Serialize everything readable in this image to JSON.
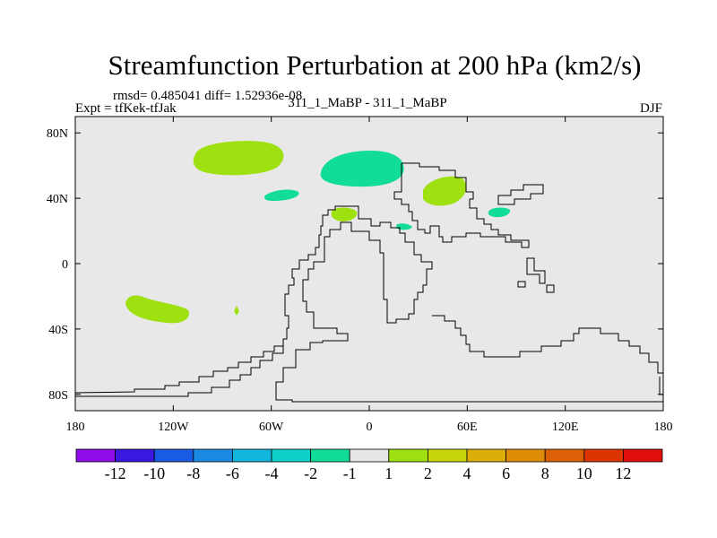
{
  "title": "Streamfunction Perturbation at 200 hPa (km2/s)",
  "stats_line": "rmsd= 0.485041 diff= 1.52936e-08",
  "left_label": "Expt = tfKek-tfJak",
  "center_label": "311_1_MaBP - 311_1_MaBP",
  "right_label": "DJF",
  "map": {
    "background_color": "#e8e8e8",
    "lon_range": [
      -180,
      180
    ],
    "lat_range": [
      -90,
      90
    ],
    "lon_ticks": [
      {
        "value": -180,
        "label": "180"
      },
      {
        "value": -120,
        "label": "120W"
      },
      {
        "value": -60,
        "label": "60W"
      },
      {
        "value": 0,
        "label": "0"
      },
      {
        "value": 60,
        "label": "60E"
      },
      {
        "value": 120,
        "label": "120E"
      },
      {
        "value": 180,
        "label": "180"
      }
    ],
    "lat_ticks": [
      {
        "value": 80,
        "label": "80N"
      },
      {
        "value": 40,
        "label": "40N"
      },
      {
        "value": 0,
        "label": "0"
      },
      {
        "value": -40,
        "label": "40S"
      },
      {
        "value": -80,
        "label": "80S"
      }
    ]
  },
  "colorbar": {
    "colors": [
      "#8f0ee8",
      "#3a18e0",
      "#1a5be3",
      "#1a8ae3",
      "#12b6dc",
      "#10d0cc",
      "#11dc98",
      "#e6e6e6",
      "#9ee010",
      "#c8d40c",
      "#dcae0a",
      "#de8c08",
      "#dc6006",
      "#dc3504",
      "#e00e0e"
    ],
    "labels": [
      "-12",
      "-10",
      "-8",
      "-6",
      "-4",
      "-2",
      "-1",
      "1",
      "2",
      "4",
      "6",
      "8",
      "10",
      "12"
    ]
  },
  "chart_data": {
    "type": "heatmap",
    "title": "Streamfunction Perturbation at 200 hPa (km2/s)",
    "xlim": [
      -180,
      180
    ],
    "ylim": [
      -90,
      90
    ],
    "anomalies": [
      {
        "lon": -95,
        "lat": 64,
        "category": "1 to 2"
      },
      {
        "lon": -45,
        "lat": 42,
        "category": "-2 to -1"
      },
      {
        "lon": 3,
        "lat": 58,
        "category": "-2 to -1"
      },
      {
        "lon": -15,
        "lat": 30,
        "category": "1 to 2"
      },
      {
        "lon": 22,
        "lat": 23,
        "category": "-2 to -1"
      },
      {
        "lon": 47,
        "lat": 44,
        "category": "1 to 2"
      },
      {
        "lon": 79,
        "lat": 32,
        "category": "-2 to -1"
      },
      {
        "lon": -139,
        "lat": -27,
        "category": "1 to 2"
      },
      {
        "lon": -82,
        "lat": -28,
        "category": "1 to 2"
      }
    ]
  }
}
